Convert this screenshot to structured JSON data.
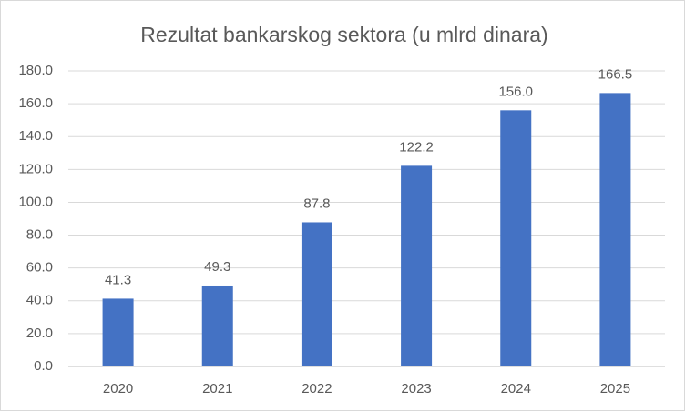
{
  "chart_data": {
    "type": "bar",
    "title": "Rezultat bankarskog sektora (u mlrd dinara)",
    "categories": [
      "2020",
      "2021",
      "2022",
      "2023",
      "2024",
      "2025"
    ],
    "values": [
      41.3,
      49.3,
      87.8,
      122.2,
      156.0,
      166.5
    ],
    "value_labels": [
      "41.3",
      "49.3",
      "87.8",
      "122.2",
      "156.0",
      "166.5"
    ],
    "color": "#4472c4",
    "ylim": [
      0,
      180
    ],
    "yticks": [
      {
        "value": 0,
        "label": "0.0"
      },
      {
        "value": 20,
        "label": "20.0"
      },
      {
        "value": 40,
        "label": "40.0"
      },
      {
        "value": 60,
        "label": "60.0"
      },
      {
        "value": 80,
        "label": "80.0"
      },
      {
        "value": 100,
        "label": "100.0"
      },
      {
        "value": 120,
        "label": "120.0"
      },
      {
        "value": 140,
        "label": "140.0"
      },
      {
        "value": 160,
        "label": "160.0"
      },
      {
        "value": 180,
        "label": "180.0"
      }
    ],
    "grid": true
  }
}
